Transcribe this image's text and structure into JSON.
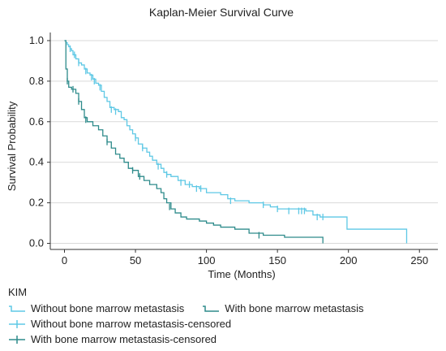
{
  "chart_data": {
    "type": "line",
    "title": "Kaplan-Meier Survival Curve",
    "xlabel": "Time (Months)",
    "ylabel": "Survival Probability",
    "xlim": [
      -10,
      263
    ],
    "ylim": [
      -0.03,
      1.04
    ],
    "xticks": [
      0,
      50,
      100,
      150,
      200,
      250
    ],
    "yticks": [
      0.0,
      0.2,
      0.4,
      0.6,
      0.8,
      1.0
    ],
    "grid": "horizontal",
    "colors": {
      "without": "#5ec8e5",
      "with": "#2e8b8b",
      "grid": "#d9d9d9",
      "axis": "#333333"
    },
    "legend": {
      "title": "KIM",
      "entries": [
        "Without bone marrow metastasis",
        "With bone marrow metastasis",
        "Without bone marrow metastasis-censored",
        "With bone marrow metastasis-censored"
      ]
    },
    "series": [
      {
        "name": "Without bone marrow metastasis",
        "points": [
          [
            0,
            1.0
          ],
          [
            1,
            0.99
          ],
          [
            2,
            0.98
          ],
          [
            3,
            0.97
          ],
          [
            4,
            0.96
          ],
          [
            5,
            0.95
          ],
          [
            6,
            0.93
          ],
          [
            8,
            0.91
          ],
          [
            10,
            0.89
          ],
          [
            12,
            0.88
          ],
          [
            14,
            0.86
          ],
          [
            16,
            0.84
          ],
          [
            18,
            0.83
          ],
          [
            20,
            0.81
          ],
          [
            22,
            0.79
          ],
          [
            24,
            0.78
          ],
          [
            26,
            0.75
          ],
          [
            28,
            0.72
          ],
          [
            30,
            0.7
          ],
          [
            32,
            0.67
          ],
          [
            35,
            0.66
          ],
          [
            38,
            0.65
          ],
          [
            40,
            0.62
          ],
          [
            42,
            0.61
          ],
          [
            44,
            0.58
          ],
          [
            46,
            0.56
          ],
          [
            48,
            0.54
          ],
          [
            50,
            0.52
          ],
          [
            52,
            0.49
          ],
          [
            55,
            0.47
          ],
          [
            58,
            0.45
          ],
          [
            60,
            0.43
          ],
          [
            62,
            0.41
          ],
          [
            65,
            0.39
          ],
          [
            68,
            0.37
          ],
          [
            70,
            0.35
          ],
          [
            72,
            0.34
          ],
          [
            75,
            0.33
          ],
          [
            80,
            0.31
          ],
          [
            85,
            0.29
          ],
          [
            90,
            0.28
          ],
          [
            95,
            0.27
          ],
          [
            100,
            0.25
          ],
          [
            110,
            0.24
          ],
          [
            115,
            0.22
          ],
          [
            120,
            0.21
          ],
          [
            130,
            0.2
          ],
          [
            140,
            0.19
          ],
          [
            145,
            0.18
          ],
          [
            150,
            0.17
          ],
          [
            170,
            0.16
          ],
          [
            175,
            0.14
          ],
          [
            180,
            0.13
          ],
          [
            198,
            0.13
          ],
          [
            199,
            0.07
          ],
          [
            240,
            0.07
          ],
          [
            241,
            0.0
          ]
        ],
        "censored": [
          [
            4,
            0.96
          ],
          [
            7,
            0.93
          ],
          [
            10,
            0.89
          ],
          [
            15,
            0.85
          ],
          [
            19,
            0.82
          ],
          [
            21,
            0.8
          ],
          [
            25,
            0.77
          ],
          [
            33,
            0.66
          ],
          [
            36,
            0.65
          ],
          [
            50,
            0.52
          ],
          [
            55,
            0.47
          ],
          [
            66,
            0.38
          ],
          [
            72,
            0.34
          ],
          [
            82,
            0.3
          ],
          [
            88,
            0.29
          ],
          [
            93,
            0.27
          ],
          [
            96,
            0.27
          ],
          [
            117,
            0.21
          ],
          [
            140,
            0.19
          ],
          [
            150,
            0.17
          ],
          [
            158,
            0.16
          ],
          [
            165,
            0.16
          ],
          [
            167,
            0.16
          ],
          [
            169,
            0.16
          ],
          [
            178,
            0.13
          ],
          [
            182,
            0.13
          ]
        ]
      },
      {
        "name": "With bone marrow metastasis",
        "points": [
          [
            0,
            1.0
          ],
          [
            1,
            0.86
          ],
          [
            2,
            0.8
          ],
          [
            3,
            0.77
          ],
          [
            5,
            0.76
          ],
          [
            8,
            0.74
          ],
          [
            10,
            0.7
          ],
          [
            12,
            0.66
          ],
          [
            14,
            0.62
          ],
          [
            16,
            0.6
          ],
          [
            20,
            0.58
          ],
          [
            24,
            0.56
          ],
          [
            27,
            0.53
          ],
          [
            30,
            0.5
          ],
          [
            33,
            0.47
          ],
          [
            36,
            0.44
          ],
          [
            39,
            0.42
          ],
          [
            42,
            0.4
          ],
          [
            45,
            0.37
          ],
          [
            48,
            0.36
          ],
          [
            52,
            0.33
          ],
          [
            56,
            0.31
          ],
          [
            60,
            0.29
          ],
          [
            65,
            0.27
          ],
          [
            68,
            0.25
          ],
          [
            70,
            0.22
          ],
          [
            72,
            0.2
          ],
          [
            75,
            0.17
          ],
          [
            78,
            0.15
          ],
          [
            82,
            0.13
          ],
          [
            86,
            0.12
          ],
          [
            95,
            0.11
          ],
          [
            100,
            0.1
          ],
          [
            105,
            0.09
          ],
          [
            110,
            0.08
          ],
          [
            120,
            0.07
          ],
          [
            130,
            0.05
          ],
          [
            140,
            0.04
          ],
          [
            155,
            0.03
          ],
          [
            181,
            0.03
          ],
          [
            182,
            0.0
          ]
        ],
        "censored": [
          [
            2,
            0.8
          ],
          [
            6,
            0.76
          ],
          [
            10,
            0.7
          ],
          [
            15,
            0.61
          ],
          [
            30,
            0.5
          ],
          [
            48,
            0.36
          ],
          [
            53,
            0.33
          ],
          [
            74,
            0.18
          ],
          [
            137,
            0.04
          ]
        ]
      }
    ]
  }
}
